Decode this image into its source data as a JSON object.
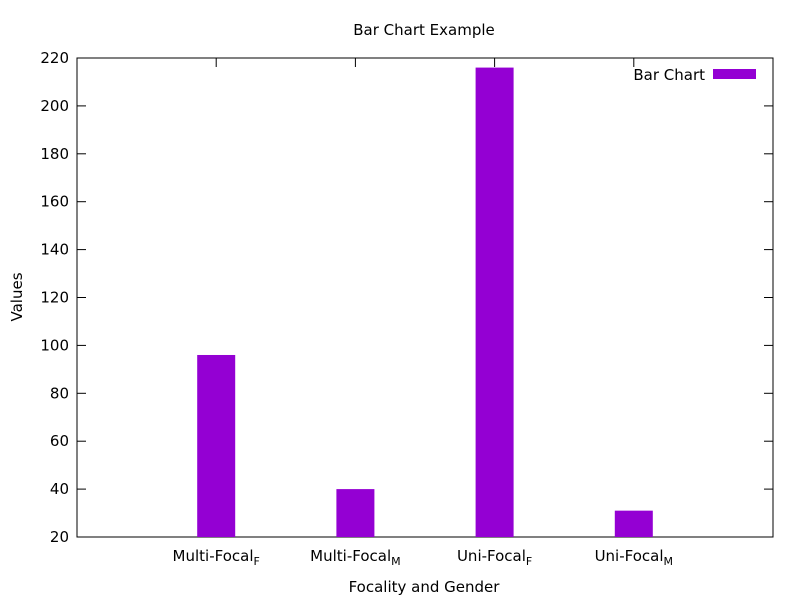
{
  "chart_data": {
    "type": "bar",
    "title": "Bar Chart Example",
    "xlabel": "Focality and Gender",
    "ylabel": "Values",
    "ylim": [
      20,
      220
    ],
    "yticks": [
      20,
      40,
      60,
      80,
      100,
      120,
      140,
      160,
      180,
      200,
      220
    ],
    "categories": [
      {
        "base": "Multi-Focal",
        "sub": "F"
      },
      {
        "base": "Multi-Focal",
        "sub": "M"
      },
      {
        "base": "Uni-Focal",
        "sub": "F"
      },
      {
        "base": "Uni-Focal",
        "sub": "M"
      }
    ],
    "series": [
      {
        "name": "Bar Chart",
        "values": [
          96,
          40,
          216,
          31
        ],
        "color": "#9400d3"
      }
    ],
    "grid": false,
    "legend_position": "top-right"
  }
}
